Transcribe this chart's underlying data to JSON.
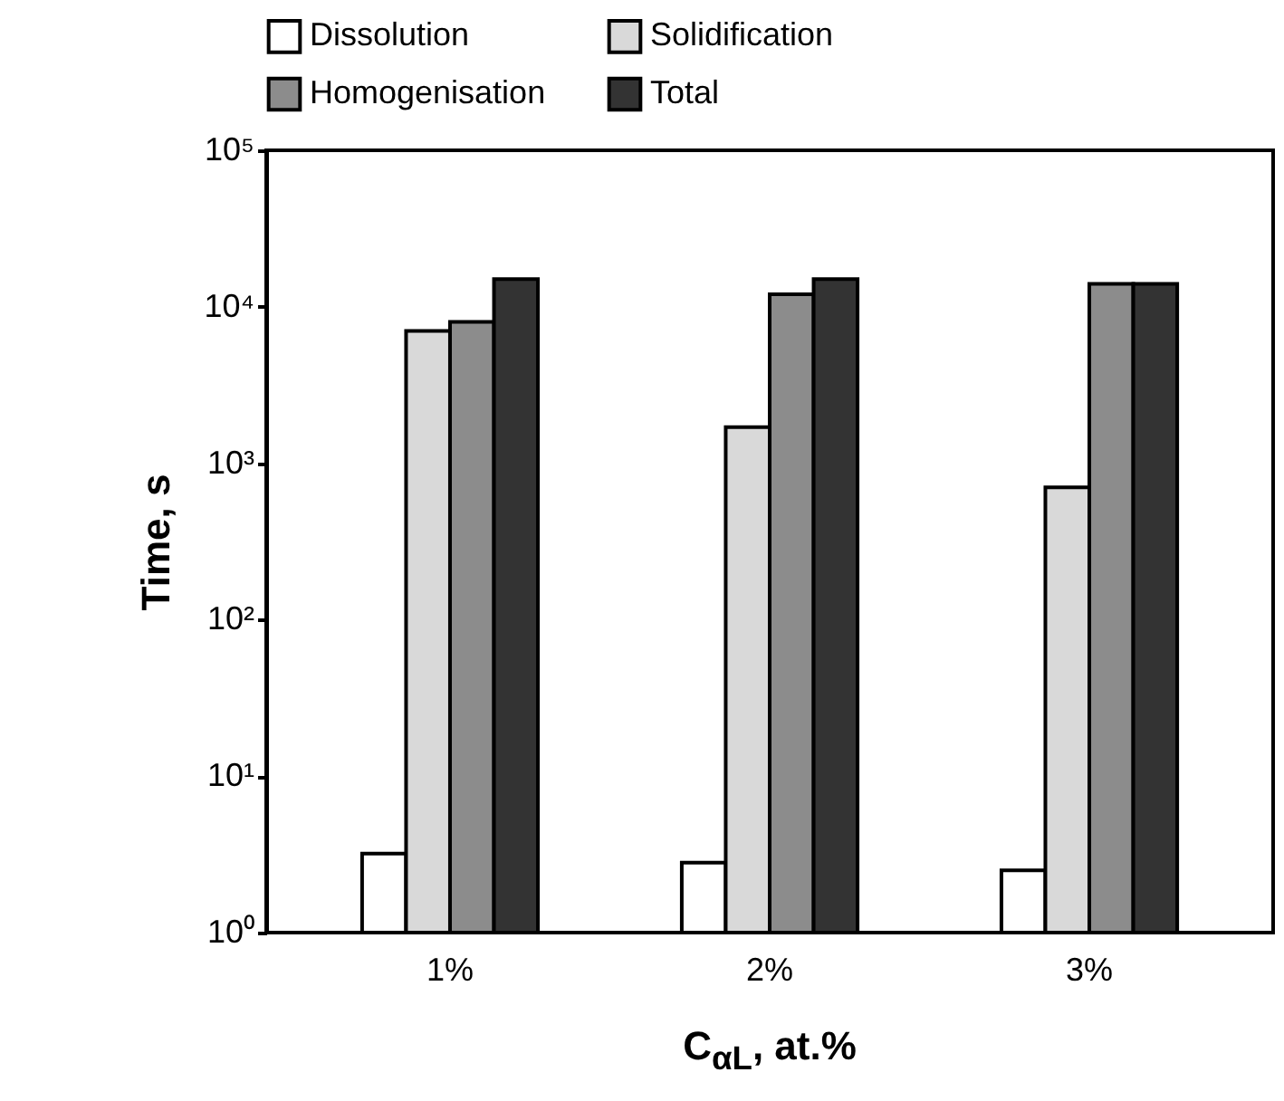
{
  "chart_data": {
    "type": "bar",
    "xlabel": "C$_{αL}$, at.%",
    "ylabel": "Time, s",
    "categories": [
      "1%",
      "2%",
      "3%"
    ],
    "series": [
      {
        "name": "Dissolution",
        "color": "#ffffff",
        "values": [
          3.2,
          2.8,
          2.5
        ]
      },
      {
        "name": "Solidification",
        "color": "#d9d9d9",
        "values": [
          7000,
          1700,
          700
        ]
      },
      {
        "name": "Homogenisation",
        "color": "#8c8c8c",
        "values": [
          8000,
          12000,
          14000
        ]
      },
      {
        "name": "Total",
        "color": "#333333",
        "values": [
          15000,
          15000,
          14000
        ]
      }
    ],
    "log": "y",
    "ylim": [
      1,
      100000
    ],
    "yticks": [
      {
        "value": 1,
        "label": "10⁰"
      },
      {
        "value": 10,
        "label": "10¹"
      },
      {
        "value": 100,
        "label": "10²"
      },
      {
        "value": 1000,
        "label": "10³"
      },
      {
        "value": 10000,
        "label": "10⁴"
      },
      {
        "value": 100000,
        "label": "10⁵"
      }
    ],
    "grid": false,
    "legend": "top left"
  }
}
